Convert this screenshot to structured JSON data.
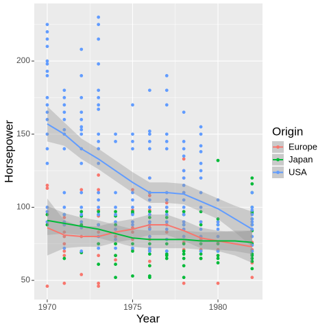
{
  "chart_data": {
    "type": "scatter",
    "x_label": "Year",
    "y_label": "Horsepower",
    "legend_title": "Origin",
    "xlim": [
      1969.24,
      1982.61
    ],
    "ylim": [
      36.9,
      239.4
    ],
    "xticks": [
      1970,
      1975,
      1980
    ],
    "yticks": [
      50,
      100,
      150,
      200
    ],
    "grid": true,
    "minor_grid": true,
    "legend_position": "right",
    "band_color": "#999999",
    "smooth_x": [
      1970,
      1971,
      1972,
      1973,
      1974,
      1975,
      1976,
      1977,
      1978,
      1979,
      1980,
      1981,
      1982
    ],
    "series": [
      {
        "name": "Europe",
        "color": "#F8766D",
        "points": [
          {
            "x": 1970,
            "values": [
              115,
              113,
              97,
              95,
              90,
              88,
              46
            ]
          },
          {
            "x": 1971,
            "values": [
              93,
              90,
              83,
              80,
              75,
              70,
              67,
              48
            ]
          },
          {
            "x": 1972,
            "values": [
              112,
              97,
              90,
              88,
              80,
              69,
              54
            ]
          },
          {
            "x": 1973,
            "values": [
              122,
              112,
              110,
              98,
              94,
              88,
              83,
              75,
              67,
              48,
              46
            ]
          },
          {
            "x": 1974,
            "values": [
              95,
              85,
              80,
              75,
              67,
              64
            ]
          },
          {
            "x": 1975,
            "values": [
              112,
              98,
              90,
              86,
              83,
              78,
              71
            ]
          },
          {
            "x": 1976,
            "values": [
              120,
              108,
              100,
              98,
              95,
              90,
              88,
              86,
              80,
              78,
              71,
              63,
              60
            ]
          },
          {
            "x": 1977,
            "values": [
              105,
              103,
              100,
              95,
              90,
              88,
              83,
              78,
              68
            ]
          },
          {
            "x": 1978,
            "values": [
              133,
              125,
              120,
              110,
              97,
              95,
              90,
              85,
              80,
              76,
              71,
              48
            ]
          },
          {
            "x": 1979,
            "values": [
              90,
              80,
              78,
              71,
              65
            ]
          },
          {
            "x": 1980,
            "values": [
              90,
              80,
              76,
              71,
              67,
              48
            ]
          },
          {
            "x": 1982,
            "values": [
              88,
              76,
              74,
              71,
              62,
              52
            ]
          }
        ],
        "smooth": [
          86,
          81,
          80,
          80,
          83,
          85,
          88,
          88,
          84,
          79,
          77,
          75,
          73
        ],
        "smooth_lower": [
          67,
          72,
          73,
          73,
          76,
          78,
          81,
          81,
          77,
          72,
          70,
          67,
          62
        ],
        "smooth_upper": [
          106,
          91,
          87,
          87,
          90,
          92,
          95,
          95,
          91,
          86,
          84,
          83,
          84
        ]
      },
      {
        "name": "Japan",
        "color": "#00BA38",
        "points": [
          {
            "x": 1970,
            "values": [
              95,
              88
            ]
          },
          {
            "x": 1971,
            "values": [
              95,
              88,
              65
            ]
          },
          {
            "x": 1972,
            "values": [
              97,
              94,
              88,
              69
            ]
          },
          {
            "x": 1973,
            "values": [
              97,
              95,
              88,
              75,
              61
            ]
          },
          {
            "x": 1974,
            "values": [
              97,
              94,
              88,
              75,
              67,
              61,
              52
            ]
          },
          {
            "x": 1975,
            "values": [
              97,
              96,
              75,
              70,
              53
            ]
          },
          {
            "x": 1976,
            "values": [
              110,
              97,
              93,
              75,
              70,
              68,
              60,
              53,
              52
            ]
          },
          {
            "x": 1977,
            "values": [
              97,
              93,
              75,
              70,
              68,
              67,
              65
            ]
          },
          {
            "x": 1978,
            "values": [
              97,
              95,
              88,
              75,
              70,
              68,
              65,
              60,
              52
            ]
          },
          {
            "x": 1979,
            "values": [
              97,
              88,
              75,
              70,
              68,
              65,
              65
            ]
          },
          {
            "x": 1980,
            "values": [
              132,
              92,
              88,
              75,
              70,
              67,
              65,
              62
            ]
          },
          {
            "x": 1982,
            "values": [
              120,
              116,
              110,
              100,
              97,
              96,
              92,
              88,
              84,
              75,
              70,
              68,
              67,
              65,
              63,
              58
            ]
          }
        ],
        "smooth": [
          91,
          89,
          87,
          85,
          82,
          79,
          78,
          78,
          78,
          77,
          77,
          77,
          76
        ],
        "smooth_lower": [
          81,
          82,
          81,
          79,
          76,
          73,
          72,
          72,
          72,
          71,
          71,
          70,
          68
        ],
        "smooth_upper": [
          101,
          96,
          93,
          91,
          88,
          85,
          84,
          84,
          84,
          83,
          83,
          84,
          84
        ]
      },
      {
        "name": "USA",
        "color": "#619CFF",
        "points": [
          {
            "x": 1970,
            "values": [
              225,
              220,
              215,
              210,
              200,
              198,
              193,
              190,
              175,
              170,
              165,
              160,
              150,
              140,
              130,
              100,
              97,
              90
            ]
          },
          {
            "x": 1971,
            "values": [
              180,
              175,
              170,
              165,
              160,
              153,
              150,
              140,
              110,
              100,
              95,
              90,
              88,
              72
            ]
          },
          {
            "x": 1972,
            "values": [
              208,
              190,
              175,
              165,
              160,
              155,
              153,
              150,
              140,
              130,
              110,
              100,
              95,
              90,
              86,
              70
            ]
          },
          {
            "x": 1973,
            "values": [
              230,
              225,
              215,
              198,
              180,
              175,
              170,
              167,
              150,
              145,
              140,
              130,
              110,
              105,
              100,
              95,
              88,
              80,
              72
            ]
          },
          {
            "x": 1974,
            "values": [
              150,
              145,
              110,
              100,
              95,
              90,
              85,
              78,
              72
            ]
          },
          {
            "x": 1975,
            "values": [
              170,
              150,
              145,
              140,
              110,
              105,
              100,
              95,
              90,
              88,
              72
            ]
          },
          {
            "x": 1976,
            "values": [
              180,
              152,
              150,
              145,
              140,
              120,
              110,
              105,
              100,
              95,
              90,
              88,
              85,
              80,
              72,
              70
            ]
          },
          {
            "x": 1977,
            "values": [
              190,
              180,
              170,
              150,
              145,
              140,
              110,
              105,
              100,
              95,
              90,
              85,
              78,
              70
            ]
          },
          {
            "x": 1978,
            "values": [
              165,
              145,
              140,
              135,
              125,
              120,
              115,
              110,
              105,
              100,
              95,
              90,
              88,
              85,
              80
            ]
          },
          {
            "x": 1979,
            "values": [
              155,
              150,
              142,
              138,
              130,
              125,
              120,
              110,
              100,
              90,
              85,
              80,
              70
            ]
          },
          {
            "x": 1980,
            "values": [
              105,
              90,
              88,
              85,
              80,
              70
            ]
          },
          {
            "x": 1982,
            "values": [
              110,
              100,
              98,
              95,
              92,
              90,
              88,
              85,
              80,
              74,
              70
            ]
          }
        ],
        "smooth": [
          157,
          150,
          140,
          133,
          125,
          117,
          110,
          110,
          109,
          104,
          99,
          92,
          85
        ],
        "smooth_lower": [
          145,
          142,
          133,
          126,
          118,
          110,
          103,
          103,
          102,
          97,
          92,
          83,
          73
        ],
        "smooth_upper": [
          169,
          158,
          147,
          140,
          132,
          124,
          117,
          117,
          116,
          111,
          106,
          101,
          97
        ]
      }
    ]
  }
}
